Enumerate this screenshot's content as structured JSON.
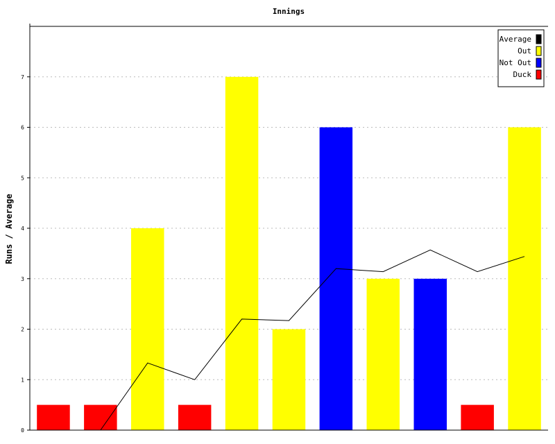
{
  "chart_data": {
    "type": "bar",
    "title": "Innings",
    "ylabel": "Runs / Average",
    "xlabel": "",
    "ylim": [
      0,
      8
    ],
    "yticks": [
      0,
      1,
      2,
      3,
      4,
      5,
      6,
      7
    ],
    "grid": true,
    "legend_position": "top-right",
    "legend": [
      {
        "label": "Average",
        "color": "#000000"
      },
      {
        "label": "Out",
        "color": "#ffff00"
      },
      {
        "label": "Not Out",
        "color": "#0000ff"
      },
      {
        "label": "Duck",
        "color": "#ff0000"
      }
    ],
    "innings": [
      {
        "runs": 0.5,
        "status": "Duck"
      },
      {
        "runs": 0.5,
        "status": "Duck"
      },
      {
        "runs": 4,
        "status": "Out"
      },
      {
        "runs": 0.5,
        "status": "Duck"
      },
      {
        "runs": 7,
        "status": "Out"
      },
      {
        "runs": 2,
        "status": "Out"
      },
      {
        "runs": 6,
        "status": "Not Out"
      },
      {
        "runs": 3,
        "status": "Out"
      },
      {
        "runs": 3,
        "status": "Not Out"
      },
      {
        "runs": 0.5,
        "status": "Duck"
      },
      {
        "runs": 6,
        "status": "Out"
      }
    ],
    "average_line": [
      null,
      0,
      1.33,
      1.0,
      2.2,
      2.17,
      3.2,
      3.14,
      3.57,
      3.14,
      3.44
    ],
    "colors": {
      "Duck": "#ff0000",
      "Out": "#ffff00",
      "Not Out": "#0000ff",
      "Average": "#000000"
    }
  }
}
